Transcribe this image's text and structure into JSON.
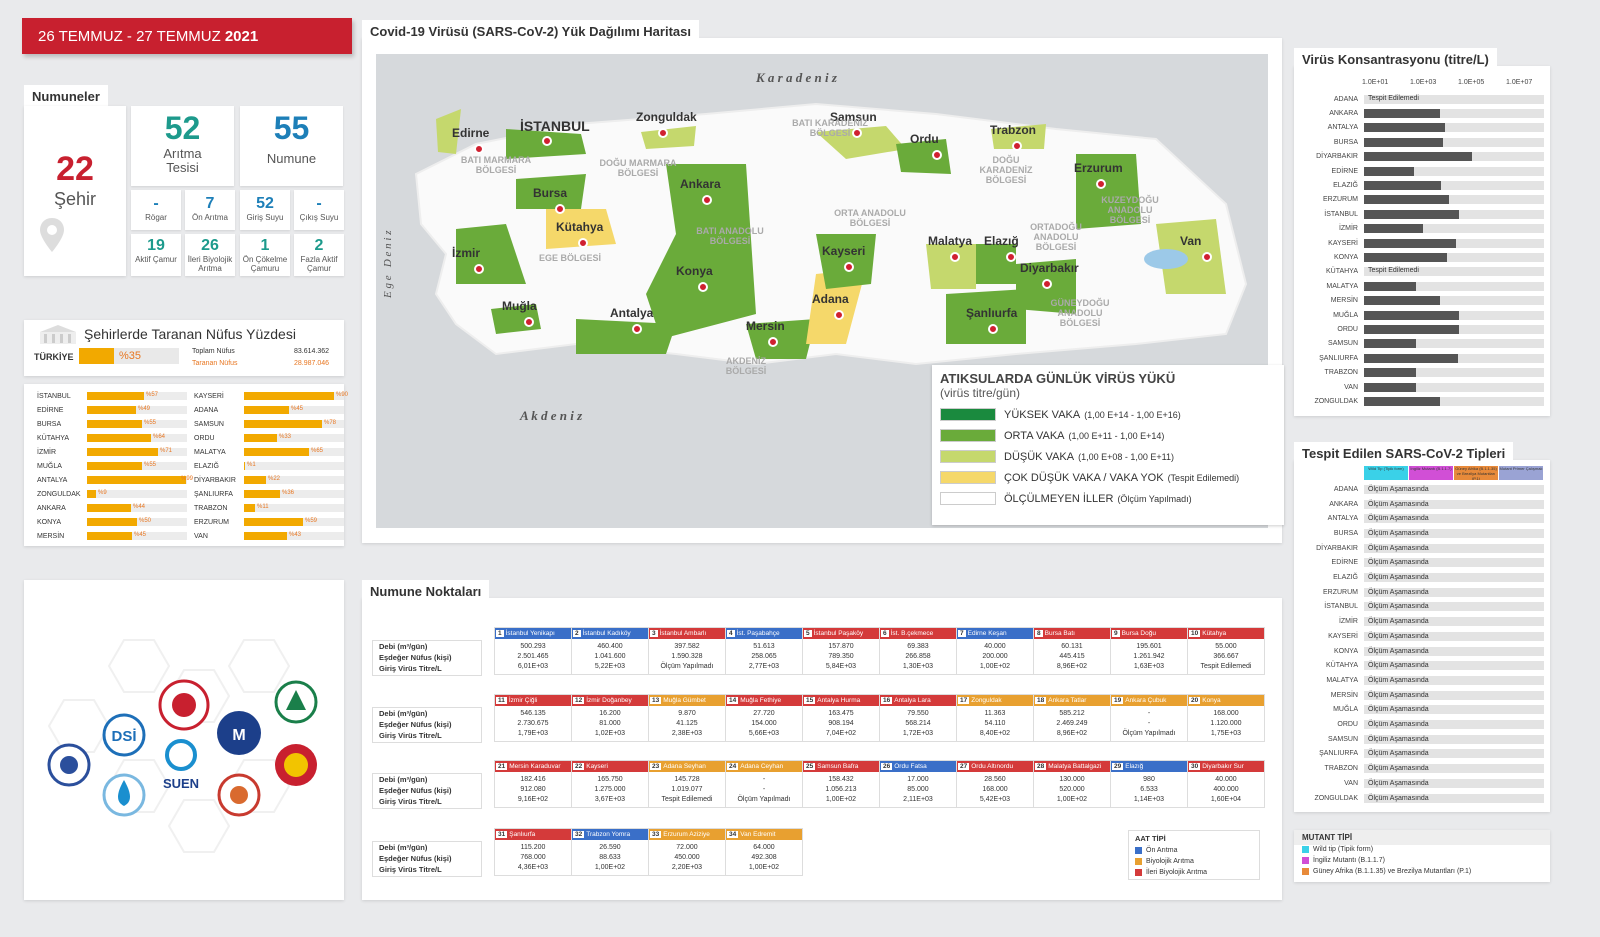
{
  "date": {
    "range": "26 TEMMUZ - 27 TEMMUZ",
    "year": "2021"
  },
  "numuneler": {
    "title": "Numuneler",
    "city_count": "22",
    "city_label": "Şehir",
    "plant_count": "52",
    "plant_label1": "Arıtma",
    "plant_label2": "Tesisi",
    "sample_count": "55",
    "sample_label": "Numune",
    "row1": [
      {
        "v": "-",
        "l": "Rögar"
      },
      {
        "v": "7",
        "l": "Ön Arıtma"
      },
      {
        "v": "52",
        "l": "Giriş Suyu"
      },
      {
        "v": "-",
        "l": "Çıkış Suyu"
      }
    ],
    "row2": [
      {
        "v": "19",
        "l1": "Aktif Çamur",
        "l2": ""
      },
      {
        "v": "26",
        "l1": "İleri Biyolojik",
        "l2": "Arıtma"
      },
      {
        "v": "1",
        "l1": "Ön Çökelme",
        "l2": "Çamuru"
      },
      {
        "v": "2",
        "l1": "Fazla Aktif",
        "l2": "Çamur"
      }
    ]
  },
  "population": {
    "title": "Şehirlerde Taranan Nüfus Yüzdesi",
    "turkey_label": "TÜRKİYE",
    "turkey_pct": "%35",
    "turkey_frac": 0.35,
    "total_label": "Toplam Nüfus",
    "total_value": "83.614.362",
    "scanned_label": "Taranan Nüfus",
    "scanned_value": "28.987.046",
    "left": [
      {
        "name": "İSTANBUL",
        "pct": "%57",
        "v": 0.57
      },
      {
        "name": "EDİRNE",
        "pct": "%49",
        "v": 0.49
      },
      {
        "name": "BURSA",
        "pct": "%55",
        "v": 0.55
      },
      {
        "name": "KÜTAHYA",
        "pct": "%64",
        "v": 0.64
      },
      {
        "name": "İZMİR",
        "pct": "%71",
        "v": 0.71
      },
      {
        "name": "MUĞLA",
        "pct": "%55",
        "v": 0.55
      },
      {
        "name": "ANTALYA",
        "pct": "%99",
        "v": 0.99
      },
      {
        "name": "ZONGULDAK",
        "pct": "%9",
        "v": 0.09
      },
      {
        "name": "ANKARA",
        "pct": "%44",
        "v": 0.44
      },
      {
        "name": "KONYA",
        "pct": "%50",
        "v": 0.5
      },
      {
        "name": "MERSİN",
        "pct": "%45",
        "v": 0.45
      }
    ],
    "right": [
      {
        "name": "KAYSERİ",
        "pct": "%90",
        "v": 0.9
      },
      {
        "name": "ADANA",
        "pct": "%45",
        "v": 0.45
      },
      {
        "name": "SAMSUN",
        "pct": "%78",
        "v": 0.78
      },
      {
        "name": "ORDU",
        "pct": "%33",
        "v": 0.33
      },
      {
        "name": "MALATYA",
        "pct": "%65",
        "v": 0.65
      },
      {
        "name": "ELAZIĞ",
        "pct": "%1",
        "v": 0.01
      },
      {
        "name": "DİYARBAKIR",
        "pct": "%22",
        "v": 0.22
      },
      {
        "name": "ŞANLIURFA",
        "pct": "%36",
        "v": 0.36
      },
      {
        "name": "TRABZON",
        "pct": "%11",
        "v": 0.11
      },
      {
        "name": "ERZURUM",
        "pct": "%59",
        "v": 0.59
      },
      {
        "name": "VAN",
        "pct": "%43",
        "v": 0.43
      }
    ]
  },
  "logos": {
    "dsi": "DSİ",
    "suen": "SUEN"
  },
  "map": {
    "title": "Covid-19 Virüsü (SARS-CoV-2) Yük Dağılımı Haritası",
    "seas": {
      "north": "K a r a d e n i z",
      "south": "A k d e n i z",
      "west": "E g e   D e n i z"
    },
    "cities": [
      "Edirne",
      "İSTANBUL",
      "Zonguldak",
      "Samsun",
      "Trabzon",
      "Ordu",
      "Erzurum",
      "Bursa",
      "Ankara",
      "Kütahya",
      "İzmir",
      "Konya",
      "Kayseri",
      "Malatya",
      "Elazığ",
      "Diyarbakır",
      "Van",
      "Muğla",
      "Antalya",
      "Mersin",
      "Adana",
      "Şanlıurfa"
    ],
    "regions": [
      "BATI MARMARA BÖLGESİ",
      "DOĞU MARMARA BÖLGESİ",
      "BATI KARADENİZ BÖLGESİ",
      "DOĞU KARADENİZ BÖLGESİ",
      "KUZEYDOĞU ANADOLU BÖLGESİ",
      "BATI ANADOLU BÖLGESİ",
      "ORTA ANADOLU BÖLGESİ",
      "ORTADOĞU ANADOLU BÖLGESİ",
      "EGE BÖLGESİ",
      "AKDENİZ BÖLGESİ",
      "GÜNEYDOĞU ANADOLU BÖLGESİ"
    ],
    "legend": {
      "title": "ATIKSULARDA GÜNLÜK VİRÜS YÜKÜ",
      "subtitle": "(virüs titre/gün)",
      "items": [
        {
          "label": "YÜKSEK VAKA",
          "range": "(1,00 E+14 - 1,00 E+16)",
          "color": "#1a8a3e"
        },
        {
          "label": "ORTA VAKA",
          "range": "(1,00 E+11 - 1,00 E+14)",
          "color": "#6aab3a"
        },
        {
          "label": "DÜŞÜK VAKA",
          "range": "(1,00 E+08 - 1,00 E+11)",
          "color": "#c5d86d"
        },
        {
          "label": "ÇOK DÜŞÜK VAKA / VAKA YOK",
          "range": "(Tespit Edilemedi)",
          "color": "#f5d86a"
        },
        {
          "label": "ÖLÇÜLMEYEN İLLER",
          "range": "(Ölçüm Yapılmadı)",
          "color": "#ffffff"
        }
      ]
    }
  },
  "virus_conc": {
    "title": "Virüs Konsantrasyonu (titre/L)",
    "ticks": [
      "1.0E+01",
      "1.0E+03",
      "1.0E+05",
      "1.0E+07"
    ],
    "not_detected": "Tespit Edilemedi",
    "rows": [
      {
        "name": "ADANA",
        "v": 0,
        "nd": true
      },
      {
        "name": "ANKARA",
        "v": 0.42
      },
      {
        "name": "ANTALYA",
        "v": 0.45
      },
      {
        "name": "BURSA",
        "v": 0.44
      },
      {
        "name": "DİYARBAKIR",
        "v": 0.6
      },
      {
        "name": "EDİRNE",
        "v": 0.28
      },
      {
        "name": "ELAZIĞ",
        "v": 0.43
      },
      {
        "name": "ERZURUM",
        "v": 0.47
      },
      {
        "name": "İSTANBUL",
        "v": 0.53
      },
      {
        "name": "İZMİR",
        "v": 0.33
      },
      {
        "name": "KAYSERİ",
        "v": 0.51
      },
      {
        "name": "KONYA",
        "v": 0.46
      },
      {
        "name": "KÜTAHYA",
        "v": 0,
        "nd": true
      },
      {
        "name": "MALATYA",
        "v": 0.29
      },
      {
        "name": "MERSİN",
        "v": 0.42
      },
      {
        "name": "MUĞLA",
        "v": 0.53
      },
      {
        "name": "ORDU",
        "v": 0.53
      },
      {
        "name": "SAMSUN",
        "v": 0.29
      },
      {
        "name": "ŞANLIURFA",
        "v": 0.52
      },
      {
        "name": "TRABZON",
        "v": 0.29
      },
      {
        "name": "VAN",
        "v": 0.29
      },
      {
        "name": "ZONGULDAK",
        "v": 0.42
      }
    ]
  },
  "sars_types": {
    "title": "Tespit Edilen SARS-CoV-2 Tipleri",
    "cols": [
      {
        "label": "Wild Tip (Tipik form)",
        "color": "#3ad1e8"
      },
      {
        "label": "İngiliz Mutantı (B.1.1.7)",
        "color": "#d14fd6"
      },
      {
        "label": "Güney Afrika (B.1.1.35) ve Brezilya Mutantları (P.1)",
        "color": "#e88a3a"
      },
      {
        "label": "Mutant Primer Çalışmalı",
        "color": "#9aa3d4"
      }
    ],
    "status": "Ölçüm Aşamasında",
    "rows": [
      "ADANA",
      "ANKARA",
      "ANTALYA",
      "BURSA",
      "DİYARBAKIR",
      "EDİRNE",
      "ELAZIĞ",
      "ERZURUM",
      "İSTANBUL",
      "İZMİR",
      "KAYSERİ",
      "KONYA",
      "KÜTAHYA",
      "MALATYA",
      "MERSİN",
      "MUĞLA",
      "ORDU",
      "SAMSUN",
      "ŞANLIURFA",
      "TRABZON",
      "VAN",
      "ZONGULDAK"
    ],
    "mutant_title": "MUTANT TİPİ",
    "mutants": [
      {
        "label": "Wild tip (Tipik form)",
        "color": "#3ad1e8"
      },
      {
        "label": "İngiliz Mutantı (B.1.1.7)",
        "color": "#d14fd6"
      },
      {
        "label": "Güney Afrika (B.1.1.35) ve Brezilya Mutantları (P.1)",
        "color": "#e88a3a"
      }
    ]
  },
  "sampling": {
    "title": "Numune Noktaları",
    "labels": [
      "Debi (m³/gün)",
      "Eşdeğer Nüfus (kişi)",
      "Giriş Virüs Titre/L"
    ],
    "rows": [
      [
        {
          "n": "1",
          "name": "İstanbul Yenikapı",
          "c": "#3a6fc8",
          "a": "500.293",
          "b": "2.501.465",
          "t": "6,01E+03"
        },
        {
          "n": "2",
          "name": "İstanbul Kadıköy",
          "c": "#3a6fc8",
          "a": "460.400",
          "b": "1.041.600",
          "t": "5,22E+03"
        },
        {
          "n": "3",
          "name": "İstanbul Ambarlı",
          "c": "#d43a3a",
          "a": "397.582",
          "b": "1.590.328",
          "t": "Ölçüm Yapılmadı"
        },
        {
          "n": "4",
          "name": "İst. Paşabahçe",
          "c": "#3a6fc8",
          "a": "51.613",
          "b": "258.065",
          "t": "2,77E+03"
        },
        {
          "n": "5",
          "name": "İstanbul Paşaköy",
          "c": "#d43a3a",
          "a": "157.870",
          "b": "789.350",
          "t": "5,84E+03"
        },
        {
          "n": "6",
          "name": "İst. B.çekmece",
          "c": "#d43a3a",
          "a": "69.383",
          "b": "266.858",
          "t": "1,30E+03"
        },
        {
          "n": "7",
          "name": "Edirne Keşan",
          "c": "#3a6fc8",
          "a": "40.000",
          "b": "200.000",
          "t": "1,00E+02"
        },
        {
          "n": "8",
          "name": "Bursa Batı",
          "c": "#d43a3a",
          "a": "60.131",
          "b": "445.415",
          "t": "8,96E+02"
        },
        {
          "n": "9",
          "name": "Bursa Doğu",
          "c": "#d43a3a",
          "a": "195.601",
          "b": "1.261.942",
          "t": "1,63E+03"
        },
        {
          "n": "10",
          "name": "Kütahya",
          "c": "#d43a3a",
          "a": "55.000",
          "b": "366.667",
          "t": "Tespit Edilemedi"
        }
      ],
      [
        {
          "n": "11",
          "name": "İzmir Çiğli",
          "c": "#d43a3a",
          "a": "546.135",
          "b": "2.730.675",
          "t": "1,79E+03"
        },
        {
          "n": "12",
          "name": "İzmir Doğanbey",
          "c": "#d43a3a",
          "a": "16.200",
          "b": "81.000",
          "t": "1,02E+03"
        },
        {
          "n": "13",
          "name": "Muğla Gümbet",
          "c": "#e8a030",
          "a": "9.870",
          "b": "41.125",
          "t": "2,38E+03"
        },
        {
          "n": "14",
          "name": "Muğla Fethiye",
          "c": "#d43a3a",
          "a": "27.720",
          "b": "154.000",
          "t": "5,66E+03"
        },
        {
          "n": "15",
          "name": "Antalya Hurma",
          "c": "#d43a3a",
          "a": "163.475",
          "b": "908.194",
          "t": "7,04E+02"
        },
        {
          "n": "16",
          "name": "Antalya Lara",
          "c": "#d43a3a",
          "a": "79.550",
          "b": "568.214",
          "t": "1,72E+03"
        },
        {
          "n": "17",
          "name": "Zonguldak",
          "c": "#e8a030",
          "a": "11.363",
          "b": "54.110",
          "t": "8,40E+02"
        },
        {
          "n": "18",
          "name": "Ankara Tatlar",
          "c": "#e8a030",
          "a": "585.212",
          "b": "2.469.249",
          "t": "8,96E+02"
        },
        {
          "n": "19",
          "name": "Ankara Çubuk",
          "c": "#e8a030",
          "a": "-",
          "b": "-",
          "t": "Ölçüm Yapılmadı"
        },
        {
          "n": "20",
          "name": "Konya",
          "c": "#e8a030",
          "a": "168.000",
          "b": "1.120.000",
          "t": "1,75E+03"
        }
      ],
      [
        {
          "n": "21",
          "name": "Mersin Karaduvar",
          "c": "#d43a3a",
          "a": "182.416",
          "b": "912.080",
          "t": "9,16E+02"
        },
        {
          "n": "22",
          "name": "Kayseri",
          "c": "#d43a3a",
          "a": "165.750",
          "b": "1.275.000",
          "t": "3,67E+03"
        },
        {
          "n": "23",
          "name": "Adana Seyhan",
          "c": "#e8a030",
          "a": "145.728",
          "b": "1.019.077",
          "t": "Tespit Edilemedi"
        },
        {
          "n": "24",
          "name": "Adana Ceyhan",
          "c": "#e8a030",
          "a": "-",
          "b": "-",
          "t": "Ölçüm Yapılmadı"
        },
        {
          "n": "25",
          "name": "Samsun Bafra",
          "c": "#d43a3a",
          "a": "158.432",
          "b": "1.056.213",
          "t": "1,00E+02"
        },
        {
          "n": "26",
          "name": "Ordu Fatsa",
          "c": "#3a6fc8",
          "a": "17.000",
          "b": "85.000",
          "t": "2,11E+03"
        },
        {
          "n": "27",
          "name": "Ordu Altınordu",
          "c": "#d43a3a",
          "a": "28.560",
          "b": "168.000",
          "t": "5,42E+03"
        },
        {
          "n": "28",
          "name": "Malatya Battalgazi",
          "c": "#d43a3a",
          "a": "130.000",
          "b": "520.000",
          "t": "1,00E+02"
        },
        {
          "n": "29",
          "name": "Elazığ",
          "c": "#3a6fc8",
          "a": "980",
          "b": "6.533",
          "t": "1,14E+03"
        },
        {
          "n": "30",
          "name": "Diyarbakır Sur",
          "c": "#d43a3a",
          "a": "40.000",
          "b": "400.000",
          "t": "1,60E+04"
        }
      ],
      [
        {
          "n": "31",
          "name": "Şanlıurfa",
          "c": "#d43a3a",
          "a": "115.200",
          "b": "768.000",
          "t": "4,36E+03"
        },
        {
          "n": "32",
          "name": "Trabzon Yomra",
          "c": "#3a6fc8",
          "a": "26.590",
          "b": "88.633",
          "t": "1,00E+02"
        },
        {
          "n": "33",
          "name": "Erzurum Aziziye",
          "c": "#e8a030",
          "a": "72.000",
          "b": "450.000",
          "t": "2,20E+03"
        },
        {
          "n": "34",
          "name": "Van Edremit",
          "c": "#e8a030",
          "a": "64.000",
          "b": "492.308",
          "t": "1,00E+02"
        }
      ]
    ],
    "aat_title": "AAT TİPİ",
    "aat": [
      {
        "label": "Ön Arıtma",
        "color": "#3a6fc8"
      },
      {
        "label": "Biyolojik Arıtma",
        "color": "#e8a030"
      },
      {
        "label": "İleri Biyolojik Arıtma",
        "color": "#d43a3a"
      }
    ]
  }
}
